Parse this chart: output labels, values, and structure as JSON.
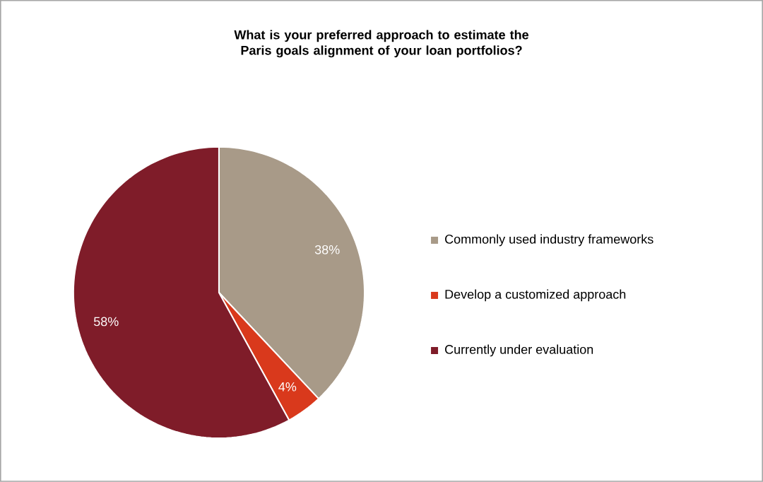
{
  "chart_data": {
    "type": "pie",
    "title": "What is your preferred approach to estimate the Paris goals alignment of your loan portfolios?",
    "categories": [
      "Commonly used industry frameworks",
      "Develop a customized approach",
      "Currently under evaluation"
    ],
    "values": [
      38,
      4,
      58
    ],
    "colors": [
      "#a89a88",
      "#d9391c",
      "#7f1c29"
    ],
    "value_labels": [
      "38%",
      "4%",
      "58%"
    ],
    "legend": "right"
  }
}
